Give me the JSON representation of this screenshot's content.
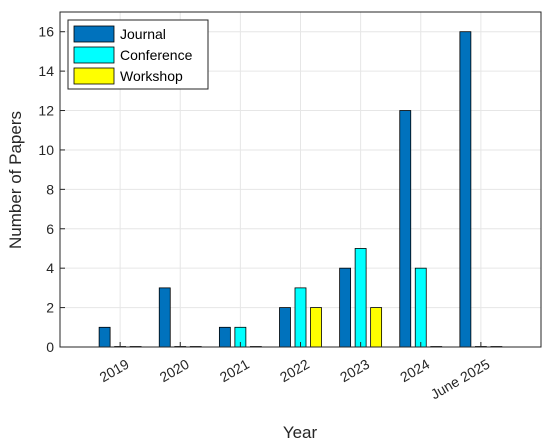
{
  "chart_data": {
    "type": "bar",
    "xlabel": "Year",
    "ylabel": "Number of Papers",
    "categories": [
      "2019",
      "2020",
      "2021",
      "2022",
      "2023",
      "2024",
      "June 2025"
    ],
    "series": [
      {
        "name": "Journal",
        "color": "#0072BD",
        "values": [
          1,
          3,
          1,
          2,
          4,
          12,
          16
        ]
      },
      {
        "name": "Conference",
        "color": "#00FFFF",
        "values": [
          0,
          0,
          1,
          3,
          5,
          4,
          0
        ]
      },
      {
        "name": "Workshop",
        "color": "#FFFF00",
        "values": [
          0,
          0,
          0,
          2,
          2,
          0,
          0
        ]
      }
    ],
    "ylim": [
      0,
      17
    ],
    "yticks": [
      0,
      2,
      4,
      6,
      8,
      10,
      12,
      14,
      16
    ],
    "grid": true,
    "legend_position": "top-left"
  }
}
